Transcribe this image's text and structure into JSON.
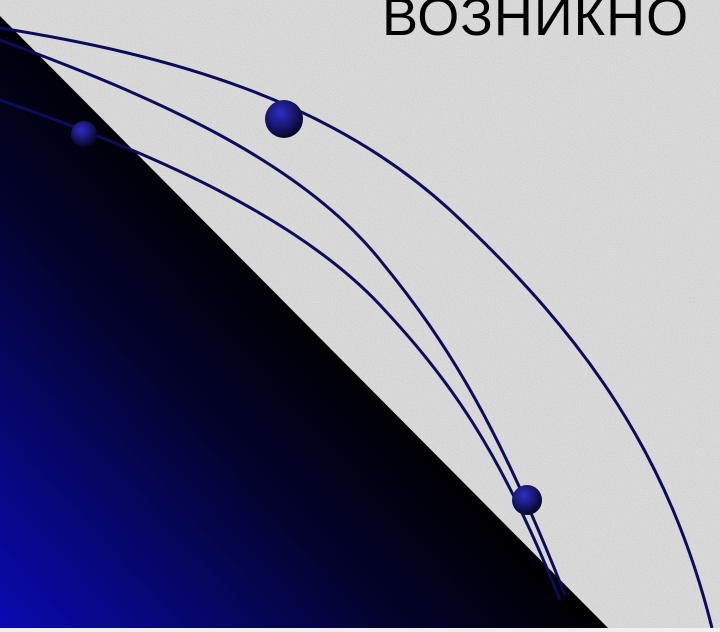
{
  "slide": {
    "heading": "ВОЗНИКНО",
    "colors": {
      "background": "#dcdcdc",
      "triangle_dark": "#000000",
      "triangle_light": "#0a0ab4",
      "curve_stroke": "#0c0c5a",
      "dot_dark": "#060628",
      "dot_light": "#2e2ec8"
    }
  }
}
